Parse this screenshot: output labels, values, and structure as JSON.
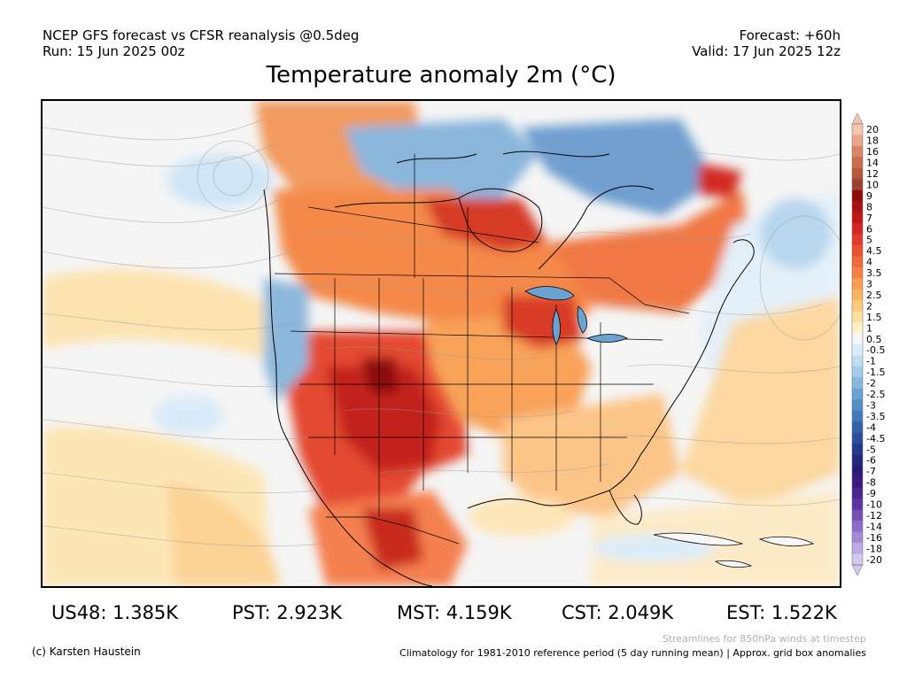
{
  "header": {
    "model_line": "NCEP GFS forecast vs CFSR reanalysis @0.5deg",
    "run_line": "Run: 15 Jun 2025 00z",
    "forecast_line": "Forecast: +60h",
    "valid_line": "Valid: 17 Jun 2025 12z"
  },
  "title": "Temperature anomaly 2m (°C)",
  "legend": {
    "labels": [
      "20",
      "18",
      "16",
      "14",
      "12",
      "10",
      "9",
      "8",
      "7",
      "6",
      "5",
      "4.5",
      "4",
      "3.5",
      "3",
      "2.5",
      "2",
      "1.5",
      "1",
      "0.5",
      "-0.5",
      "-1",
      "-1.5",
      "-2",
      "-2.5",
      "-3",
      "-3.5",
      "-4",
      "-4.5",
      "-5",
      "-6",
      "-7",
      "-8",
      "-9",
      "-10",
      "-12",
      "-14",
      "-16",
      "-18",
      "-20"
    ],
    "colors": [
      "#f2c6b0",
      "#e8a68c",
      "#d98768",
      "#c96d50",
      "#b5573c",
      "#9e4230",
      "#8c0c0c",
      "#a81010",
      "#c01818",
      "#d42424",
      "#e03a2a",
      "#e85232",
      "#f06a3a",
      "#f48244",
      "#f89c52",
      "#fab464",
      "#fccb7c",
      "#fde09e",
      "#fff0c8",
      "#f7f7f7",
      "#dcecf8",
      "#c0ddf2",
      "#a4cce8",
      "#86b8de",
      "#6aa2d2",
      "#548ec6",
      "#4278b8",
      "#3462aa",
      "#2a4e9c",
      "#223a8c",
      "#22287e",
      "#2a1c76",
      "#3a1a80",
      "#4c2490",
      "#5e36a4",
      "#7250b8",
      "#8a6cc8",
      "#a48ad6",
      "#bcaae2",
      "#d4c8ee"
    ]
  },
  "stats": {
    "us48": "US48: 1.385K",
    "pst": "PST: 2.923K",
    "mst": "MST: 4.159K",
    "cst": "CST: 2.049K",
    "est": "EST: 1.522K"
  },
  "footer": {
    "copyright": "(c) Karsten Haustein",
    "streamlines_note": "Streamlines for 850hPa winds at timestep",
    "climatology_note": "Climatology for 1981-2010 reference period (5 day running mean) | Approx. grid box anomalies"
  }
}
